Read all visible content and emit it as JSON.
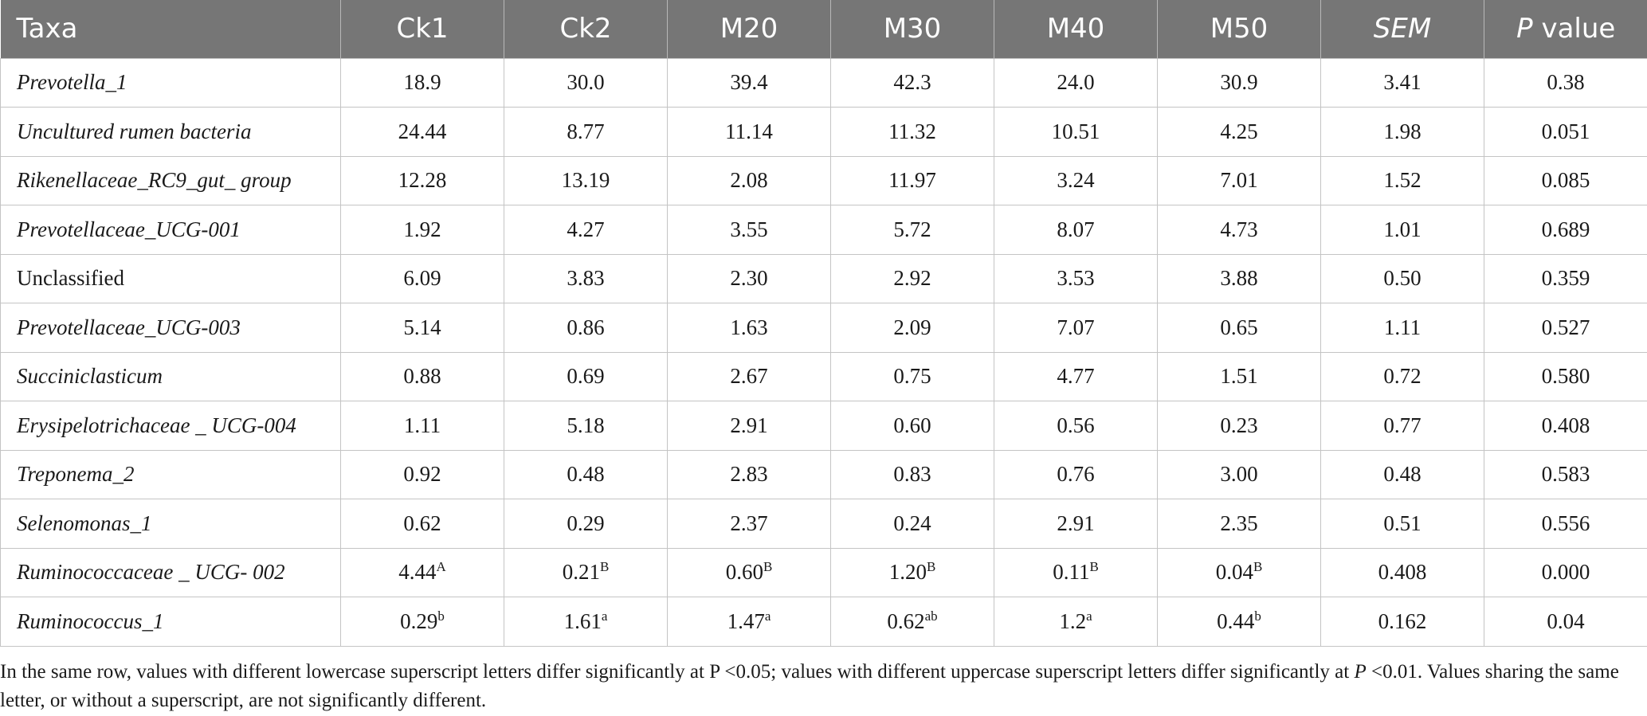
{
  "table": {
    "headers": [
      {
        "text": "Taxa",
        "italic": false
      },
      {
        "text": "Ck1",
        "italic": false
      },
      {
        "text": "Ck2",
        "italic": false
      },
      {
        "text": "M20",
        "italic": false
      },
      {
        "text": "M30",
        "italic": false
      },
      {
        "text": "M40",
        "italic": false
      },
      {
        "text": "M50",
        "italic": false
      },
      {
        "text": "SEM",
        "italic": true
      },
      {
        "text": "P",
        "italic": true,
        "suffix": " value"
      }
    ],
    "rows": [
      {
        "taxon": "Prevotella_1",
        "italic": true,
        "cells": [
          [
            "18.9",
            ""
          ],
          [
            "30.0",
            ""
          ],
          [
            "39.4",
            ""
          ],
          [
            "42.3",
            ""
          ],
          [
            "24.0",
            ""
          ],
          [
            "30.9",
            ""
          ],
          [
            "3.41",
            ""
          ],
          [
            "0.38",
            ""
          ]
        ]
      },
      {
        "taxon": "Uncultured rumen bacteria",
        "italic": true,
        "cells": [
          [
            "24.44",
            ""
          ],
          [
            "8.77",
            ""
          ],
          [
            "11.14",
            ""
          ],
          [
            "11.32",
            ""
          ],
          [
            "10.51",
            ""
          ],
          [
            "4.25",
            ""
          ],
          [
            "1.98",
            ""
          ],
          [
            "0.051",
            ""
          ]
        ]
      },
      {
        "taxon": "Rikenellaceae_RC9_gut_ group",
        "italic": true,
        "cells": [
          [
            "12.28",
            ""
          ],
          [
            "13.19",
            ""
          ],
          [
            "2.08",
            ""
          ],
          [
            "11.97",
            ""
          ],
          [
            "3.24",
            ""
          ],
          [
            "7.01",
            ""
          ],
          [
            "1.52",
            ""
          ],
          [
            "0.085",
            ""
          ]
        ]
      },
      {
        "taxon": "Prevotellaceae_UCG-001",
        "italic": true,
        "cells": [
          [
            "1.92",
            ""
          ],
          [
            "4.27",
            ""
          ],
          [
            "3.55",
            ""
          ],
          [
            "5.72",
            ""
          ],
          [
            "8.07",
            ""
          ],
          [
            "4.73",
            ""
          ],
          [
            "1.01",
            ""
          ],
          [
            "0.689",
            ""
          ]
        ]
      },
      {
        "taxon": "Unclassified",
        "italic": false,
        "cells": [
          [
            "6.09",
            ""
          ],
          [
            "3.83",
            ""
          ],
          [
            "2.30",
            ""
          ],
          [
            "2.92",
            ""
          ],
          [
            "3.53",
            ""
          ],
          [
            "3.88",
            ""
          ],
          [
            "0.50",
            ""
          ],
          [
            "0.359",
            ""
          ]
        ]
      },
      {
        "taxon": "Prevotellaceae_UCG-003",
        "italic": true,
        "cells": [
          [
            "5.14",
            ""
          ],
          [
            "0.86",
            ""
          ],
          [
            "1.63",
            ""
          ],
          [
            "2.09",
            ""
          ],
          [
            "7.07",
            ""
          ],
          [
            "0.65",
            ""
          ],
          [
            "1.11",
            ""
          ],
          [
            "0.527",
            ""
          ]
        ]
      },
      {
        "taxon": "Succiniclasticum",
        "italic": true,
        "cells": [
          [
            "0.88",
            ""
          ],
          [
            "0.69",
            ""
          ],
          [
            "2.67",
            ""
          ],
          [
            "0.75",
            ""
          ],
          [
            "4.77",
            ""
          ],
          [
            "1.51",
            ""
          ],
          [
            "0.72",
            ""
          ],
          [
            "0.580",
            ""
          ]
        ]
      },
      {
        "taxon": "Erysipelotrichaceae _ UCG-004",
        "italic": true,
        "cells": [
          [
            "1.11",
            ""
          ],
          [
            "5.18",
            ""
          ],
          [
            "2.91",
            ""
          ],
          [
            "0.60",
            ""
          ],
          [
            "0.56",
            ""
          ],
          [
            "0.23",
            ""
          ],
          [
            "0.77",
            ""
          ],
          [
            "0.408",
            ""
          ]
        ]
      },
      {
        "taxon": "Treponema_2",
        "italic": true,
        "cells": [
          [
            "0.92",
            ""
          ],
          [
            "0.48",
            ""
          ],
          [
            "2.83",
            ""
          ],
          [
            "0.83",
            ""
          ],
          [
            "0.76",
            ""
          ],
          [
            "3.00",
            ""
          ],
          [
            "0.48",
            ""
          ],
          [
            "0.583",
            ""
          ]
        ]
      },
      {
        "taxon": "Selenomonas_1",
        "italic": true,
        "cells": [
          [
            "0.62",
            ""
          ],
          [
            "0.29",
            ""
          ],
          [
            "2.37",
            ""
          ],
          [
            "0.24",
            ""
          ],
          [
            "2.91",
            ""
          ],
          [
            "2.35",
            ""
          ],
          [
            "0.51",
            ""
          ],
          [
            "0.556",
            ""
          ]
        ]
      },
      {
        "taxon": "Ruminococcaceae _ UCG- 002",
        "italic": true,
        "cells": [
          [
            "4.44",
            "A"
          ],
          [
            "0.21",
            "B"
          ],
          [
            "0.60",
            "B"
          ],
          [
            "1.20",
            "B"
          ],
          [
            "0.11",
            "B"
          ],
          [
            "0.04",
            "B"
          ],
          [
            "0.408",
            ""
          ],
          [
            "0.000",
            ""
          ]
        ]
      },
      {
        "taxon": "Ruminococcus_1",
        "italic": true,
        "cells": [
          [
            "0.29",
            "b"
          ],
          [
            "1.61",
            "a"
          ],
          [
            "1.47",
            "a"
          ],
          [
            "0.62",
            "ab"
          ],
          [
            "1.2",
            "a"
          ],
          [
            "0.44",
            "b"
          ],
          [
            "0.162",
            ""
          ],
          [
            "0.04",
            ""
          ]
        ]
      }
    ]
  },
  "footnote": {
    "part1": "In the same row, values with different lowercase superscript letters differ significantly at P <0.05; values with different uppercase superscript letters differ significantly at ",
    "p_italic": "P",
    "part2": " <0.01. Values sharing the same letter, or without a superscript, are not significantly different."
  }
}
